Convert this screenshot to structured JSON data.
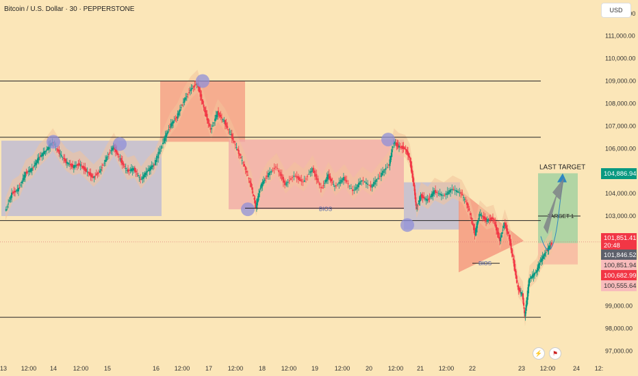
{
  "title": "Bitcoin / U.S. Dollar · 30 · PEPPERSTONE",
  "currency": "USD",
  "chart_data": {
    "type": "candlestick",
    "y_axis": {
      "ticks": [
        97000,
        98000,
        99000,
        100000,
        101000,
        102000,
        103000,
        104000,
        105000,
        106000,
        107000,
        108000,
        109000,
        110000,
        111000,
        112000
      ],
      "range": [
        96500,
        112600
      ],
      "tick_labels": [
        "97,000.00",
        "98,000.00",
        "99,000.00",
        "100,000.00",
        "101,000.00",
        "102,000.00",
        "103,000.00",
        "104,000.00",
        "105,000.00",
        "106,000.00",
        "107,000.00",
        "108,000.00",
        "109,000.00",
        "110,000.00",
        "111,000.00",
        "112,000.00"
      ]
    },
    "x_axis": {
      "labels": [
        "13",
        "12:00",
        "14",
        "12:00",
        "15",
        "16",
        "12:00",
        "17",
        "12:00",
        "18",
        "12:00",
        "19",
        "12:00",
        "20",
        "12:00",
        "21",
        "12:00",
        "22",
        "23",
        "12:00",
        "24",
        "12:"
      ]
    },
    "price_path": [
      [
        0,
        103.2
      ],
      [
        0.3,
        104.0
      ],
      [
        0.6,
        104.2
      ],
      [
        0.9,
        104.9
      ],
      [
        1.2,
        105.1
      ],
      [
        1.5,
        105.6
      ],
      [
        1.8,
        105.9
      ],
      [
        2.1,
        106.3
      ],
      [
        2.4,
        105.8
      ],
      [
        2.7,
        105.4
      ],
      [
        3.0,
        105.2
      ],
      [
        3.3,
        105.3
      ],
      [
        3.6,
        105.0
      ],
      [
        3.9,
        104.7
      ],
      [
        4.2,
        105.0
      ],
      [
        4.5,
        105.6
      ],
      [
        4.8,
        106.1
      ],
      [
        5.1,
        105.5
      ],
      [
        5.4,
        105.0
      ],
      [
        5.7,
        105.1
      ],
      [
        6.0,
        104.6
      ],
      [
        6.3,
        105.0
      ],
      [
        6.6,
        105.3
      ],
      [
        7.0,
        106.3
      ],
      [
        7.3,
        107.0
      ],
      [
        7.6,
        107.4
      ],
      [
        7.9,
        108.1
      ],
      [
        8.2,
        108.6
      ],
      [
        8.5,
        108.9
      ],
      [
        8.8,
        107.8
      ],
      [
        9.1,
        106.8
      ],
      [
        9.4,
        107.6
      ],
      [
        9.7,
        107.2
      ],
      [
        10.0,
        106.6
      ],
      [
        10.3,
        105.9
      ],
      [
        10.6,
        105.2
      ],
      [
        10.9,
        104.3
      ],
      [
        11.1,
        103.4
      ],
      [
        11.3,
        104.3
      ],
      [
        11.6,
        104.8
      ],
      [
        12.0,
        105.2
      ],
      [
        12.4,
        104.4
      ],
      [
        12.8,
        104.8
      ],
      [
        13.2,
        104.5
      ],
      [
        13.6,
        105.1
      ],
      [
        14.0,
        104.2
      ],
      [
        14.3,
        104.8
      ],
      [
        14.6,
        104.3
      ],
      [
        15.0,
        104.7
      ],
      [
        15.4,
        104.1
      ],
      [
        15.8,
        104.6
      ],
      [
        16.2,
        104.3
      ],
      [
        16.6,
        104.8
      ],
      [
        17.0,
        105.3
      ],
      [
        17.2,
        106.3
      ],
      [
        17.4,
        106.1
      ],
      [
        17.7,
        106.0
      ],
      [
        17.9,
        105.6
      ],
      [
        18.1,
        104.3
      ],
      [
        18.2,
        103.3
      ],
      [
        18.4,
        103.9
      ],
      [
        18.7,
        103.7
      ],
      [
        19.0,
        104.1
      ],
      [
        19.4,
        103.9
      ],
      [
        19.8,
        104.2
      ],
      [
        20.2,
        104.0
      ],
      [
        20.5,
        103.4
      ],
      [
        20.8,
        102.2
      ],
      [
        21.0,
        103.1
      ],
      [
        21.3,
        102.8
      ],
      [
        21.6,
        102.9
      ],
      [
        21.9,
        101.9
      ],
      [
        22.1,
        102.7
      ],
      [
        22.3,
        102.1
      ],
      [
        22.5,
        101.0
      ],
      [
        22.7,
        99.8
      ],
      [
        22.9,
        99.5
      ],
      [
        23.0,
        98.5
      ],
      [
        23.2,
        100.2
      ],
      [
        23.5,
        100.5
      ],
      [
        23.7,
        101.0
      ],
      [
        24.0,
        101.5
      ],
      [
        24.2,
        101.8
      ]
    ],
    "annotations": {
      "horizontal_lines": [
        109000,
        106500,
        102800,
        98500
      ],
      "bios_labels": [
        "BIOS",
        "BIOS"
      ],
      "last_target": "LAST TARGET",
      "target1": "TARGET 1"
    },
    "price_labels": [
      {
        "text": "104,886.94",
        "color": "#089981"
      },
      {
        "text": "101,851.41",
        "sub": "20:48",
        "color": "#f23645"
      },
      {
        "text": "101,846.52",
        "color": "#5d606b"
      },
      {
        "text": "100,851.94",
        "color": "#f8bcbc",
        "dark": true
      },
      {
        "text": "100,682.99",
        "color": "#f23645"
      },
      {
        "text": "100,555.64",
        "color": "#f8bcbc",
        "dark": true
      }
    ]
  }
}
